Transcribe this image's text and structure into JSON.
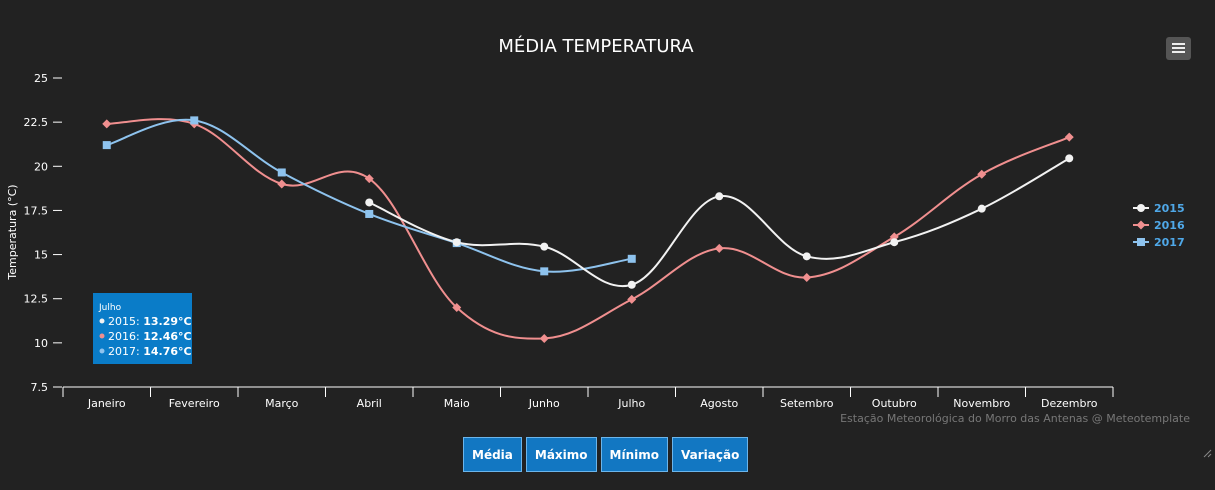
{
  "chart_data": {
    "type": "line",
    "title": "MÉDIA TEMPERATURA",
    "ylabel": "Temperatura (°C)",
    "xlabel": "",
    "ylim": [
      7.5,
      25
    ],
    "yticks": [
      "7.5",
      "10",
      "12.5",
      "15",
      "17.5",
      "20",
      "22.5",
      "25"
    ],
    "categories": [
      "Janeiro",
      "Fevereiro",
      "Março",
      "Abril",
      "Maio",
      "Junho",
      "Julho",
      "Agosto",
      "Setembro",
      "Outubro",
      "Novembro",
      "Dezembro"
    ],
    "legend_position": "right",
    "series": [
      {
        "name": "2015",
        "color": "#f2f2f2",
        "marker": "circle",
        "values": [
          null,
          null,
          null,
          17.95,
          15.7,
          15.45,
          13.29,
          18.3,
          14.9,
          15.7,
          17.6,
          20.45
        ]
      },
      {
        "name": "2016",
        "color": "#f08f8f",
        "marker": "diamond",
        "values": [
          22.4,
          22.4,
          19.0,
          19.3,
          12.0,
          10.25,
          12.46,
          15.35,
          13.7,
          16.0,
          19.55,
          21.65
        ]
      },
      {
        "name": "2017",
        "color": "#8ec3ee",
        "marker": "square",
        "values": [
          21.2,
          22.6,
          19.65,
          17.3,
          15.65,
          14.05,
          14.76,
          null,
          null,
          null,
          null,
          null
        ]
      }
    ],
    "tooltip": {
      "title": "Julho",
      "rows": [
        {
          "label": "2015: ",
          "value": "13.29°C"
        },
        {
          "label": "2016: ",
          "value": "12.46°C"
        },
        {
          "label": "2017: ",
          "value": "14.76°C"
        }
      ]
    },
    "credit": "Estação Meteorológica do Morro das Antenas @ Meteotemplate"
  },
  "buttons": {
    "media": "Média",
    "maximo": "Máximo",
    "minimo": "Mínimo",
    "variacao": "Variação"
  },
  "menu_icon": "hamburger-menu-icon"
}
